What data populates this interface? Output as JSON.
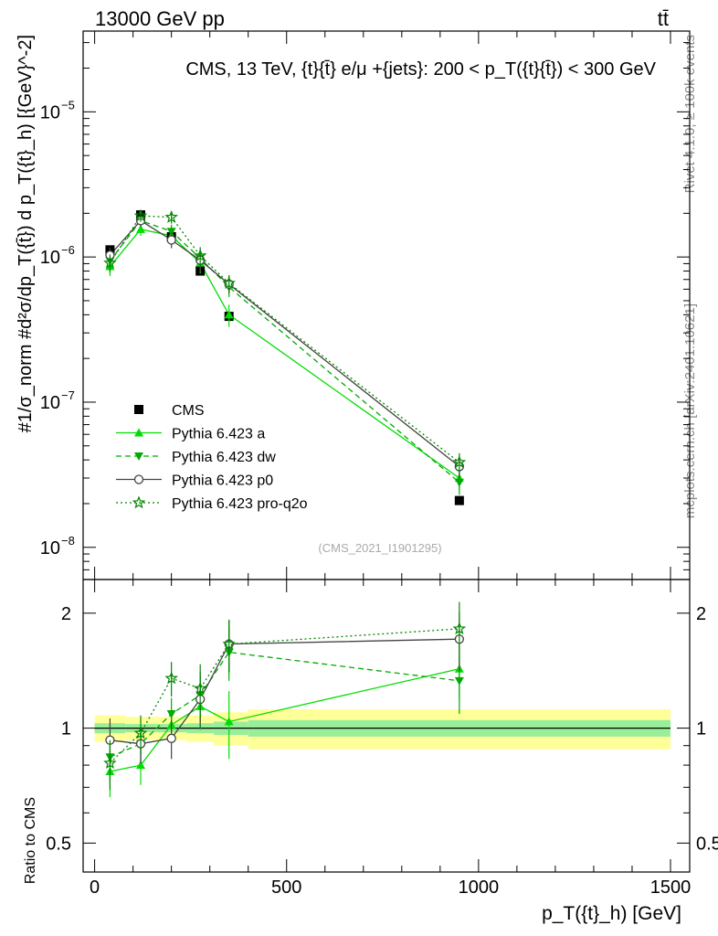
{
  "header": {
    "left": "13000 GeV pp",
    "right": "tt̄"
  },
  "side_labels": {
    "rivet": "Rivet 4.1.0, ≥ 100k events",
    "mcplots": "mcplots.cern.ch [arXiv:2401.10621]"
  },
  "chart_data": [
    {
      "type": "line",
      "panel": "main",
      "yscale": "log",
      "title": "CMS, 13 TeV, {t}{t̄} e/μ +{jets}: 200 <  p_T({t}{t̄}) < 300 GeV",
      "ylabel": "#1/σ_norm #d²σ/dp_T({t̄}) d p_T({t}_h) [{GeV}^-2]",
      "xlim": [
        -30,
        1550
      ],
      "ylim": [
        6e-09,
        3.6e-05
      ],
      "yticks": [
        1e-08,
        1e-07,
        1e-06,
        1e-05
      ],
      "ytick_labels": [
        "10",
        "10",
        "10",
        "10"
      ],
      "ytick_exponents": [
        "−8",
        "−7",
        "−6",
        "−5"
      ],
      "watermark": "(CMS_2021_I1901295)",
      "x": [
        40,
        120,
        200,
        275,
        350,
        950
      ],
      "series": [
        {
          "name": "CMS",
          "color": "#000000",
          "marker": "square",
          "style": "none",
          "values": [
            1.12e-06,
            1.95e-06,
            1.38e-06,
            8e-07,
            3.9e-07,
            2.1e-08
          ]
        },
        {
          "name": "Pythia 6.423 a",
          "color": "#00dd00",
          "marker": "triangle-up",
          "style": "solid",
          "values": [
            8.6e-07,
            1.55e-06,
            1.4e-06,
            9.1e-07,
            4e-07,
            3e-08
          ],
          "errors": [
            1.2e-07,
            1.5e-07,
            1.6e-07,
            1.4e-07,
            7e-08,
            5e-09
          ]
        },
        {
          "name": "Pythia 6.423 dw",
          "color": "#00aa00",
          "marker": "triangle-down",
          "style": "dashed",
          "values": [
            9.4e-07,
            1.78e-06,
            1.5e-06,
            9.8e-07,
            6.2e-07,
            2.8e-08
          ],
          "errors": [
            1.3e-07,
            1.6e-07,
            1.7e-07,
            1.4e-07,
            9e-08,
            5e-09
          ]
        },
        {
          "name": "Pythia 6.423 p0",
          "color": "#444444",
          "marker": "circle-open",
          "style": "solid",
          "values": [
            1.03e-06,
            1.78e-06,
            1.31e-06,
            9.5e-07,
            6.5e-07,
            3.6e-08
          ],
          "errors": [
            1.3e-07,
            1.7e-07,
            1.6e-07,
            1.5e-07,
            9e-08,
            6e-09
          ]
        },
        {
          "name": "Pythia 6.423 pro-q2o",
          "color": "#008800",
          "marker": "star-open",
          "style": "dotted",
          "values": [
            9.1e-07,
            1.92e-06,
            1.88e-06,
            1.02e-06,
            6.6e-07,
            3.85e-08
          ],
          "errors": [
            1.3e-07,
            1.7e-07,
            1.8e-07,
            1.5e-07,
            9e-08,
            6e-09
          ]
        }
      ]
    },
    {
      "type": "line",
      "panel": "ratio",
      "ylabel": "Ratio to CMS",
      "xlabel": "p_T({t}_h) [GeV]",
      "xlim": [
        -30,
        1550
      ],
      "ylim": [
        0.42,
        2.45
      ],
      "yscale": "log",
      "yticks": [
        0.5,
        1,
        2
      ],
      "ytick_labels": [
        "0.5",
        "1",
        "2"
      ],
      "xticks": [
        0,
        500,
        1000,
        1500
      ],
      "xtick_labels": [
        "0",
        "500",
        "1000",
        "1500"
      ],
      "x": [
        40,
        120,
        200,
        275,
        350,
        950
      ],
      "bands": {
        "bin_edges": [
          0,
          80,
          160,
          240,
          310,
          400,
          1500
        ],
        "inner": [
          0.03,
          0.025,
          0.025,
          0.03,
          0.04,
          0.05
        ],
        "outer": [
          0.08,
          0.07,
          0.07,
          0.08,
          0.1,
          0.12
        ]
      },
      "series": [
        {
          "name": "Pythia 6.423 a",
          "color": "#00dd00",
          "marker": "triangle-up",
          "style": "solid",
          "values": [
            0.77,
            0.8,
            1.02,
            1.14,
            1.04,
            1.43
          ],
          "errors": [
            0.11,
            0.09,
            0.1,
            0.15,
            0.21,
            0.24
          ]
        },
        {
          "name": "Pythia 6.423 dw",
          "color": "#00aa00",
          "marker": "triangle-down",
          "style": "dashed",
          "values": [
            0.84,
            0.91,
            1.09,
            1.22,
            1.58,
            1.33
          ],
          "errors": [
            0.12,
            0.1,
            0.11,
            0.18,
            0.25,
            0.24
          ]
        },
        {
          "name": "Pythia 6.423 p0",
          "color": "#444444",
          "marker": "circle-open",
          "style": "solid",
          "values": [
            0.93,
            0.91,
            0.94,
            1.19,
            1.66,
            1.71
          ],
          "errors": [
            0.13,
            0.1,
            0.11,
            0.19,
            0.26,
            0.3
          ]
        },
        {
          "name": "Pythia 6.423 pro-q2o",
          "color": "#008800",
          "marker": "star-open",
          "style": "dotted",
          "values": [
            0.81,
            0.97,
            1.35,
            1.27,
            1.66,
            1.82
          ],
          "errors": [
            0.12,
            0.11,
            0.14,
            0.2,
            0.26,
            0.32
          ]
        }
      ]
    }
  ]
}
